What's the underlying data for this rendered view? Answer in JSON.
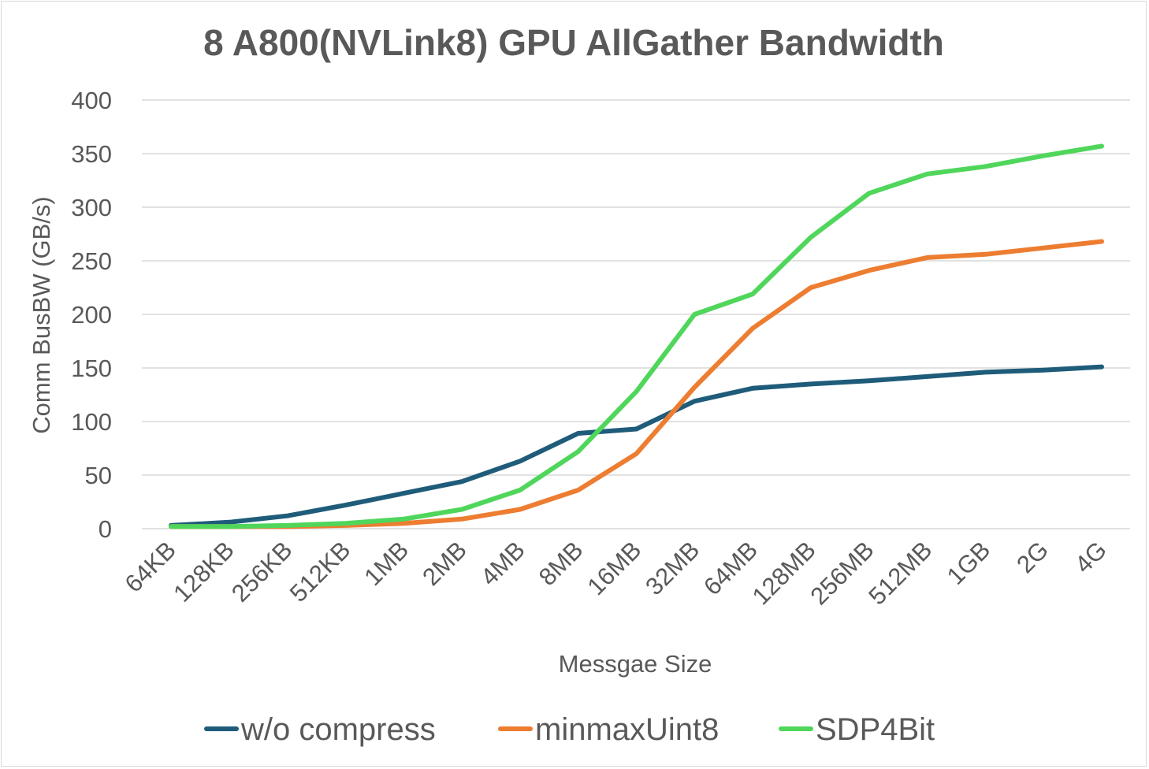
{
  "chart_data": {
    "type": "line",
    "title": "8 A800(NVLink8) GPU AllGather Bandwidth",
    "xlabel": "Messgae Size",
    "ylabel": "Comm BusBW (GB/s)",
    "ylim": [
      0,
      400
    ],
    "yticks": [
      "0",
      "50",
      "100",
      "150",
      "200",
      "250",
      "300",
      "350",
      "400"
    ],
    "grid": true,
    "legend_position": "bottom",
    "categories": [
      "64KB",
      "128KB",
      "256KB",
      "512KB",
      "1MB",
      "2MB",
      "4MB",
      "8MB",
      "16MB",
      "32MB",
      "64MB",
      "128MB",
      "256MB",
      "512MB",
      "1GB",
      "2G",
      "4G"
    ],
    "series": [
      {
        "name": "w/o compress",
        "color": "#1f5c7a",
        "values": [
          3,
          6,
          12,
          22,
          33,
          44,
          63,
          89,
          93,
          119,
          131,
          135,
          138,
          142,
          146,
          148,
          151
        ]
      },
      {
        "name": "minmaxUint8",
        "color": "#ed7d31",
        "values": [
          2,
          2,
          2,
          3,
          5,
          9,
          18,
          36,
          70,
          132,
          187,
          225,
          241,
          253,
          256,
          262,
          268
        ]
      },
      {
        "name": "SDP4Bit",
        "color": "#4fd65b",
        "values": [
          2,
          2,
          3,
          5,
          9,
          18,
          36,
          72,
          128,
          200,
          219,
          272,
          313,
          331,
          338,
          348,
          357
        ]
      }
    ]
  }
}
